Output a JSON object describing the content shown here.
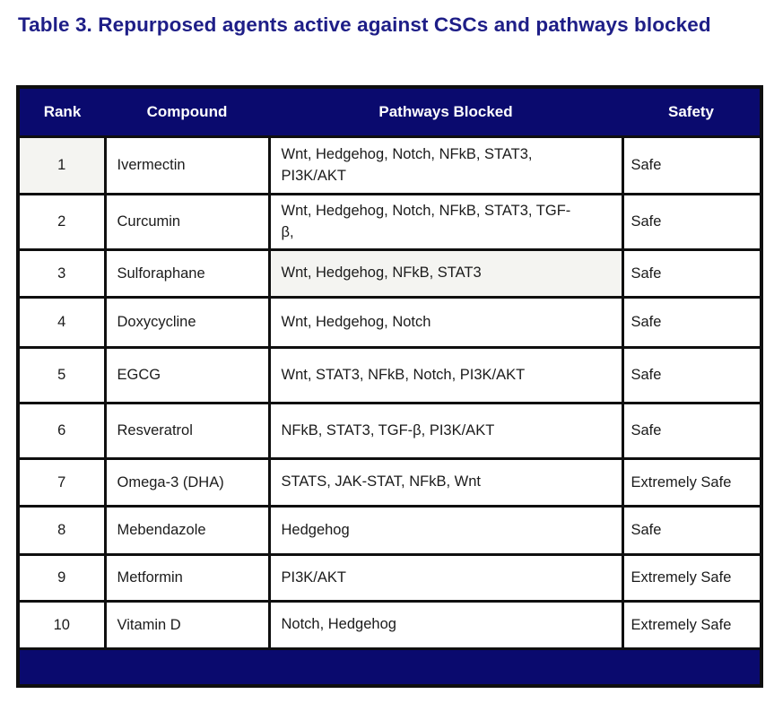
{
  "title": "Table 3. Repurposed agents active against CSCs and pathways blocked",
  "colors": {
    "header_bg": "#0a0a6e",
    "footer_bg": "#0a0a6e",
    "title_text": "#1e1e87",
    "header_text": "#ffffff",
    "border": "#0f0f0f",
    "shaded_cell_bg": "#f4f4f1"
  },
  "table": {
    "columns": [
      "Rank",
      "Compound",
      "Pathways Blocked",
      "Safety"
    ],
    "rows": [
      {
        "rank": "1",
        "compound": "Ivermectin",
        "pathways": "Wnt, Hedgehog, Notch, NFkB, STAT3,\nPI3K/AKT",
        "safety": "Safe"
      },
      {
        "rank": "2",
        "compound": "Curcumin",
        "pathways": "Wnt, Hedgehog, Notch, NFkB, STAT3, TGF-\nβ,",
        "safety": "Safe"
      },
      {
        "rank": "3",
        "compound": "Sulforaphane",
        "pathways": "Wnt, Hedgehog, NFkB, STAT3",
        "safety": "Safe"
      },
      {
        "rank": "4",
        "compound": "Doxycycline",
        "pathways": "Wnt, Hedgehog, Notch",
        "safety": "Safe"
      },
      {
        "rank": "5",
        "compound": "EGCG",
        "pathways": "Wnt, STAT3, NFkB, Notch, PI3K/AKT",
        "safety": "Safe"
      },
      {
        "rank": "6",
        "compound": "Resveratrol",
        "pathways": "NFkB, STAT3, TGF-β, PI3K/AKT",
        "safety": "Safe"
      },
      {
        "rank": "7",
        "compound": "Omega-3 (DHA)",
        "pathways": "STATS, JAK-STAT, NFkB, Wnt",
        "safety": "Extremely Safe"
      },
      {
        "rank": "8",
        "compound": "Mebendazole",
        "pathways": "Hedgehog",
        "safety": "Safe"
      },
      {
        "rank": "9",
        "compound": "Metformin",
        "pathways": "PI3K/AKT",
        "safety": "Extremely Safe"
      },
      {
        "rank": "10",
        "compound": "Vitamin D",
        "pathways": "Notch, Hedgehog",
        "safety": "Extremely Safe"
      }
    ],
    "shaded_cells": [
      {
        "row": 0,
        "col": "rank"
      },
      {
        "row": 2,
        "col": "pathways"
      }
    ]
  }
}
